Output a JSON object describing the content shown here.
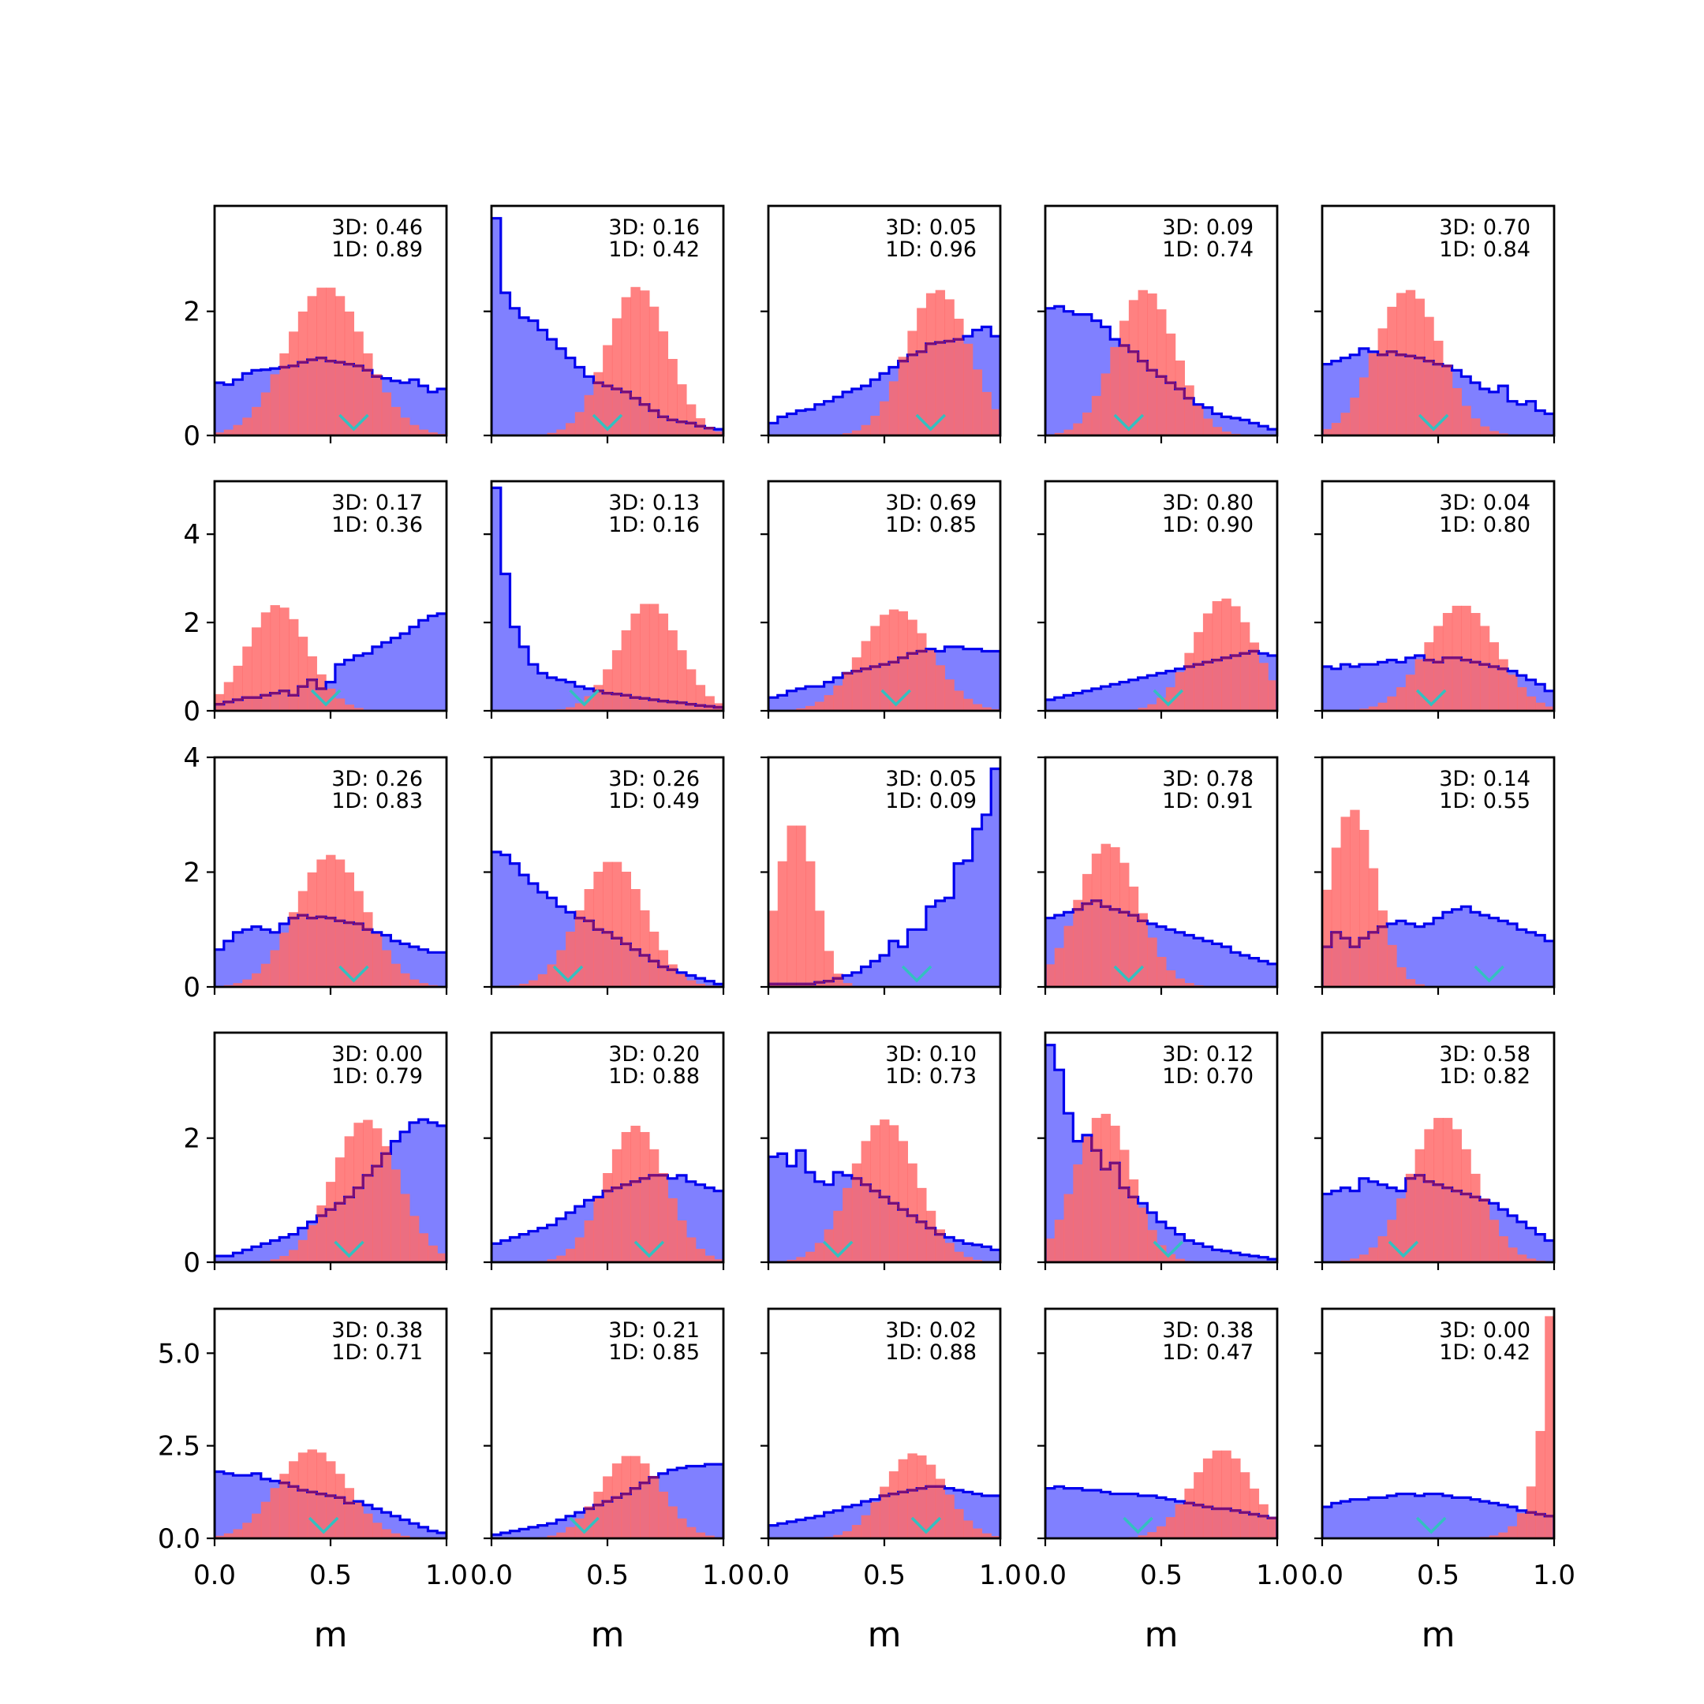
{
  "colors": {
    "blue_fill": "#8080ff",
    "blue_line": "#0000ee",
    "red_fill": "#ff6b6b",
    "overlap_line": "#7a0f77",
    "marker": "#33c0c0",
    "frame": "#000000"
  },
  "chart_data": {
    "type": "histogram-grid",
    "rows": 5,
    "cols": 5,
    "xlabel": "m",
    "xlim": [
      0,
      1
    ],
    "x_ticks": [
      "0.0",
      "0.5",
      "1.0"
    ],
    "row_ylim": [
      [
        0,
        3.7
      ],
      [
        0,
        5.2
      ],
      [
        0,
        4.0
      ],
      [
        0,
        3.7
      ],
      [
        0,
        6.2
      ]
    ],
    "row_yticks": [
      {
        "values": [
          0,
          2
        ],
        "labels": [
          "0",
          "2"
        ]
      },
      {
        "values": [
          0,
          2,
          4
        ],
        "labels": [
          "0",
          "2",
          "4"
        ]
      },
      {
        "values": [
          0,
          2,
          4
        ],
        "labels": [
          "0",
          "2",
          "4"
        ]
      },
      {
        "values": [
          0,
          2
        ],
        "labels": [
          "0",
          "2"
        ]
      },
      {
        "values": [
          0,
          2.5,
          5
        ],
        "labels": [
          "0.0",
          "2.5",
          "5.0"
        ]
      }
    ],
    "panels": [
      {
        "label3d": "3D: 0.46",
        "label1d": "1D: 0.89",
        "marker": 0.6,
        "blue": [
          0.85,
          0.82,
          0.9,
          1.0,
          1.05,
          1.06,
          1.08,
          1.1,
          1.12,
          1.18,
          1.22,
          1.25,
          1.2,
          1.18,
          1.15,
          1.12,
          1.05,
          0.95,
          0.92,
          0.88,
          0.85,
          0.9,
          0.8,
          0.7,
          0.75
        ],
        "red": {
          "type": "normal",
          "mu": 0.48,
          "sigma": 0.165,
          "peak": 2.4
        }
      },
      {
        "label3d": "3D: 0.16",
        "label1d": "1D: 0.42",
        "marker": 0.5,
        "blue": [
          3.5,
          2.3,
          2.05,
          1.9,
          1.85,
          1.7,
          1.55,
          1.4,
          1.25,
          1.1,
          0.95,
          0.85,
          0.8,
          0.75,
          0.7,
          0.6,
          0.5,
          0.4,
          0.3,
          0.25,
          0.22,
          0.2,
          0.15,
          0.12,
          0.1
        ],
        "red": {
          "type": "normal",
          "mu": 0.63,
          "sigma": 0.13,
          "peak": 2.4
        }
      },
      {
        "label3d": "3D: 0.05",
        "label1d": "1D: 0.96",
        "marker": 0.7,
        "blue": [
          0.2,
          0.3,
          0.35,
          0.4,
          0.42,
          0.5,
          0.55,
          0.62,
          0.7,
          0.75,
          0.8,
          0.9,
          1.0,
          1.1,
          1.2,
          1.3,
          1.35,
          1.48,
          1.5,
          1.52,
          1.55,
          1.6,
          1.7,
          1.75,
          1.6
        ],
        "red": {
          "type": "normal",
          "mu": 0.73,
          "sigma": 0.135,
          "peak": 2.35
        }
      },
      {
        "label3d": "3D: 0.09",
        "label1d": "1D: 0.74",
        "marker": 0.36,
        "blue": [
          2.05,
          2.08,
          2.0,
          1.95,
          1.95,
          1.85,
          1.75,
          1.55,
          1.45,
          1.35,
          1.2,
          1.05,
          0.95,
          0.85,
          0.75,
          0.6,
          0.5,
          0.45,
          0.35,
          0.3,
          0.28,
          0.25,
          0.2,
          0.15,
          0.1
        ],
        "red": {
          "type": "normal",
          "mu": 0.43,
          "sigma": 0.13,
          "peak": 2.35
        }
      },
      {
        "label3d": "3D: 0.70",
        "label1d": "1D: 0.84",
        "marker": 0.48,
        "blue": [
          1.15,
          1.2,
          1.25,
          1.3,
          1.4,
          1.35,
          1.3,
          1.35,
          1.3,
          1.28,
          1.25,
          1.2,
          1.15,
          1.12,
          1.05,
          0.95,
          0.85,
          0.75,
          0.7,
          0.8,
          0.55,
          0.5,
          0.55,
          0.4,
          0.35
        ],
        "red": {
          "type": "normal",
          "mu": 0.37,
          "sigma": 0.14,
          "peak": 2.35
        }
      },
      {
        "label3d": "3D: 0.17",
        "label1d": "1D: 0.36",
        "marker": 0.48,
        "blue": [
          0.15,
          0.2,
          0.25,
          0.3,
          0.3,
          0.35,
          0.4,
          0.45,
          0.35,
          0.55,
          0.7,
          0.5,
          0.65,
          1.05,
          1.15,
          1.25,
          1.3,
          1.45,
          1.55,
          1.65,
          1.75,
          1.9,
          2.05,
          2.15,
          2.2
        ],
        "red": {
          "type": "normal",
          "mu": 0.27,
          "sigma": 0.13,
          "peak": 2.4
        }
      },
      {
        "label3d": "3D: 0.13",
        "label1d": "1D: 0.16",
        "marker": 0.4,
        "blue": [
          5.05,
          3.1,
          1.9,
          1.45,
          1.05,
          0.85,
          0.75,
          0.7,
          0.65,
          0.55,
          0.5,
          0.45,
          0.4,
          0.38,
          0.35,
          0.3,
          0.28,
          0.25,
          0.22,
          0.2,
          0.18,
          0.15,
          0.12,
          0.1,
          0.08
        ],
        "red": {
          "type": "normal",
          "mu": 0.68,
          "sigma": 0.13,
          "peak": 2.45
        }
      },
      {
        "label3d": "3D: 0.69",
        "label1d": "1D: 0.85",
        "marker": 0.55,
        "blue": [
          0.3,
          0.35,
          0.45,
          0.5,
          0.55,
          0.55,
          0.65,
          0.75,
          0.85,
          0.9,
          0.95,
          1.0,
          1.05,
          1.1,
          1.2,
          1.3,
          1.35,
          1.4,
          1.35,
          1.45,
          1.45,
          1.4,
          1.4,
          1.35,
          1.35
        ],
        "red": {
          "type": "normal",
          "mu": 0.55,
          "sigma": 0.15,
          "peak": 2.3
        }
      },
      {
        "label3d": "3D: 0.80",
        "label1d": "1D: 0.90",
        "marker": 0.53,
        "blue": [
          0.25,
          0.3,
          0.35,
          0.4,
          0.45,
          0.5,
          0.55,
          0.6,
          0.65,
          0.7,
          0.75,
          0.8,
          0.85,
          0.9,
          0.95,
          1.0,
          1.05,
          1.1,
          1.15,
          1.2,
          1.25,
          1.3,
          1.35,
          1.3,
          1.25
        ],
        "red": {
          "type": "normal",
          "mu": 0.77,
          "sigma": 0.13,
          "peak": 2.55
        }
      },
      {
        "label3d": "3D: 0.04",
        "label1d": "1D: 0.80",
        "marker": 0.47,
        "blue": [
          1.0,
          0.95,
          1.05,
          1.0,
          1.05,
          1.05,
          1.1,
          1.15,
          1.1,
          1.2,
          1.25,
          1.15,
          1.1,
          1.2,
          1.2,
          1.15,
          1.1,
          1.05,
          1.0,
          0.95,
          0.9,
          0.8,
          0.7,
          0.6,
          0.45
        ],
        "red": {
          "type": "normal",
          "mu": 0.6,
          "sigma": 0.15,
          "peak": 2.4
        }
      },
      {
        "label3d": "3D: 0.26",
        "label1d": "1D: 0.83",
        "marker": 0.6,
        "blue": [
          0.65,
          0.8,
          0.95,
          1.0,
          1.05,
          1.0,
          0.95,
          1.1,
          1.2,
          1.25,
          1.2,
          1.22,
          1.2,
          1.15,
          1.12,
          1.1,
          1.0,
          0.95,
          0.9,
          0.8,
          0.75,
          0.7,
          0.65,
          0.6,
          0.6
        ],
        "red": {
          "type": "normal",
          "mu": 0.5,
          "sigma": 0.15,
          "peak": 2.3
        }
      },
      {
        "label3d": "3D: 0.26",
        "label1d": "1D: 0.49",
        "marker": 0.33,
        "blue": [
          2.35,
          2.3,
          2.15,
          1.95,
          1.8,
          1.65,
          1.55,
          1.4,
          1.3,
          1.2,
          1.15,
          1.0,
          0.95,
          0.85,
          0.75,
          0.65,
          0.55,
          0.45,
          0.35,
          0.3,
          0.25,
          0.2,
          0.15,
          0.1,
          0.05
        ],
        "red": {
          "type": "normal",
          "mu": 0.52,
          "sigma": 0.14,
          "peak": 2.2
        }
      },
      {
        "label3d": "3D: 0.05",
        "label1d": "1D: 0.09",
        "marker": 0.64,
        "blue": [
          0.05,
          0.05,
          0.05,
          0.05,
          0.05,
          0.08,
          0.1,
          0.15,
          0.2,
          0.25,
          0.35,
          0.45,
          0.55,
          0.8,
          0.7,
          1.0,
          1.0,
          1.4,
          1.5,
          1.55,
          2.15,
          2.2,
          2.75,
          3.0,
          3.8
        ],
        "red": {
          "type": "normal",
          "mu": 0.12,
          "sigma": 0.08,
          "peak": 2.9
        }
      },
      {
        "label3d": "3D: 0.78",
        "label1d": "1D: 0.91",
        "marker": 0.36,
        "blue": [
          1.2,
          1.25,
          1.3,
          1.35,
          1.45,
          1.5,
          1.4,
          1.35,
          1.3,
          1.25,
          1.15,
          1.1,
          1.05,
          1.0,
          0.95,
          0.9,
          0.85,
          0.8,
          0.75,
          0.7,
          0.6,
          0.55,
          0.5,
          0.45,
          0.4
        ],
        "red": {
          "type": "normal",
          "mu": 0.27,
          "sigma": 0.13,
          "peak": 2.5
        }
      },
      {
        "label3d": "3D: 0.14",
        "label1d": "1D: 0.55",
        "marker": 0.72,
        "blue": [
          0.7,
          0.95,
          0.85,
          0.7,
          0.85,
          0.95,
          1.05,
          1.1,
          1.15,
          1.1,
          1.05,
          1.1,
          1.2,
          1.3,
          1.35,
          1.4,
          1.3,
          1.25,
          1.2,
          1.15,
          1.1,
          1.0,
          0.95,
          0.9,
          0.8
        ],
        "red": {
          "type": "normal",
          "mu": 0.13,
          "sigma": 0.1,
          "peak": 3.1
        }
      },
      {
        "label3d": "3D: 0.00",
        "label1d": "1D: 0.79",
        "marker": 0.58,
        "blue": [
          0.1,
          0.1,
          0.15,
          0.2,
          0.25,
          0.3,
          0.35,
          0.4,
          0.45,
          0.55,
          0.65,
          0.75,
          0.85,
          0.95,
          1.05,
          1.2,
          1.4,
          1.55,
          1.75,
          1.95,
          2.1,
          2.25,
          2.3,
          2.25,
          2.2
        ],
        "red": {
          "type": "normal",
          "mu": 0.65,
          "sigma": 0.14,
          "peak": 2.3
        }
      },
      {
        "label3d": "3D: 0.20",
        "label1d": "1D: 0.88",
        "marker": 0.68,
        "blue": [
          0.3,
          0.35,
          0.4,
          0.45,
          0.5,
          0.55,
          0.6,
          0.7,
          0.8,
          0.9,
          1.0,
          1.05,
          1.15,
          1.2,
          1.25,
          1.3,
          1.35,
          1.4,
          1.4,
          1.35,
          1.4,
          1.3,
          1.25,
          1.2,
          1.15
        ],
        "red": {
          "type": "normal",
          "mu": 0.62,
          "sigma": 0.13,
          "peak": 2.2
        }
      },
      {
        "label3d": "3D: 0.10",
        "label1d": "1D: 0.73",
        "marker": 0.3,
        "blue": [
          1.7,
          1.75,
          1.55,
          1.8,
          1.45,
          1.3,
          1.25,
          1.45,
          1.4,
          1.35,
          1.25,
          1.15,
          1.05,
          0.95,
          0.85,
          0.75,
          0.65,
          0.55,
          0.45,
          0.4,
          0.35,
          0.3,
          0.28,
          0.25,
          0.2
        ],
        "red": {
          "type": "normal",
          "mu": 0.5,
          "sigma": 0.14,
          "peak": 2.3
        }
      },
      {
        "label3d": "3D: 0.12",
        "label1d": "1D: 0.70",
        "marker": 0.53,
        "blue": [
          3.5,
          3.1,
          2.4,
          1.95,
          2.05,
          1.8,
          1.5,
          1.6,
          1.2,
          1.05,
          0.95,
          0.8,
          0.65,
          0.55,
          0.45,
          0.35,
          0.3,
          0.25,
          0.2,
          0.18,
          0.15,
          0.12,
          0.1,
          0.08,
          0.05
        ],
        "red": {
          "type": "normal",
          "mu": 0.25,
          "sigma": 0.12,
          "peak": 2.4
        }
      },
      {
        "label3d": "3D: 0.58",
        "label1d": "1D: 0.82",
        "marker": 0.35,
        "blue": [
          1.1,
          1.15,
          1.2,
          1.15,
          1.35,
          1.3,
          1.25,
          1.2,
          1.15,
          1.35,
          1.4,
          1.3,
          1.25,
          1.2,
          1.15,
          1.1,
          1.05,
          1.0,
          0.95,
          0.85,
          0.75,
          0.65,
          0.55,
          0.45,
          0.35
        ],
        "red": {
          "type": "normal",
          "mu": 0.52,
          "sigma": 0.14,
          "peak": 2.35
        }
      },
      {
        "label3d": "3D: 0.38",
        "label1d": "1D: 0.71",
        "marker": 0.47,
        "blue": [
          1.8,
          1.75,
          1.7,
          1.7,
          1.75,
          1.6,
          1.55,
          1.5,
          1.4,
          1.3,
          1.25,
          1.2,
          1.15,
          1.1,
          0.95,
          1.0,
          0.9,
          0.8,
          0.7,
          0.6,
          0.5,
          0.4,
          0.3,
          0.2,
          0.15
        ],
        "red": {
          "type": "normal",
          "mu": 0.42,
          "sigma": 0.15,
          "peak": 2.4
        }
      },
      {
        "label3d": "3D: 0.21",
        "label1d": "1D: 0.85",
        "marker": 0.4,
        "blue": [
          0.1,
          0.15,
          0.2,
          0.25,
          0.3,
          0.35,
          0.4,
          0.5,
          0.6,
          0.7,
          0.8,
          0.9,
          1.0,
          1.1,
          1.2,
          1.35,
          1.5,
          1.65,
          1.75,
          1.85,
          1.9,
          1.95,
          1.95,
          2.0,
          2.0
        ],
        "red": {
          "type": "normal",
          "mu": 0.6,
          "sigma": 0.13,
          "peak": 2.25
        }
      },
      {
        "label3d": "3D: 0.02",
        "label1d": "1D: 0.88",
        "marker": 0.68,
        "blue": [
          0.35,
          0.4,
          0.45,
          0.5,
          0.55,
          0.6,
          0.7,
          0.75,
          0.85,
          0.9,
          1.0,
          1.05,
          1.15,
          1.2,
          1.25,
          1.3,
          1.35,
          1.4,
          1.4,
          1.35,
          1.3,
          1.25,
          1.2,
          1.15,
          1.15
        ],
        "red": {
          "type": "normal",
          "mu": 0.63,
          "sigma": 0.13,
          "peak": 2.3
        }
      },
      {
        "label3d": "3D: 0.38",
        "label1d": "1D: 0.47",
        "marker": 0.4,
        "blue": [
          1.35,
          1.4,
          1.35,
          1.35,
          1.3,
          1.3,
          1.25,
          1.2,
          1.2,
          1.2,
          1.15,
          1.15,
          1.1,
          1.05,
          1.0,
          0.95,
          0.9,
          0.85,
          0.8,
          0.8,
          0.75,
          0.7,
          0.65,
          0.6,
          0.55
        ],
        "red": {
          "type": "normal",
          "mu": 0.76,
          "sigma": 0.13,
          "peak": 2.4
        }
      },
      {
        "label3d": "3D: 0.00",
        "label1d": "1D: 0.42",
        "marker": 0.47,
        "blue": [
          0.85,
          0.95,
          1.0,
          1.05,
          1.05,
          1.1,
          1.1,
          1.15,
          1.2,
          1.2,
          1.15,
          1.2,
          1.2,
          1.15,
          1.1,
          1.1,
          1.05,
          1.0,
          0.95,
          0.9,
          0.85,
          0.75,
          0.7,
          0.65,
          0.6
        ],
        "red": {
          "type": "exp",
          "peak": 6.0,
          "scale": 0.055
        }
      }
    ]
  }
}
